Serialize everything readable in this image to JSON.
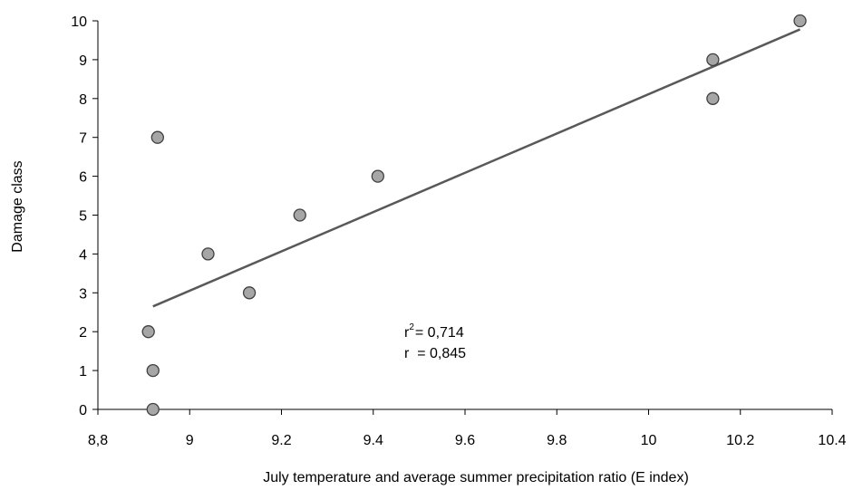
{
  "chart_data": {
    "type": "scatter",
    "xlabel": "July temperature and average summer precipitation ratio (E index)",
    "ylabel": "Damage class",
    "xlim": [
      8.8,
      10.4
    ],
    "ylim": [
      0,
      10
    ],
    "x_ticks": [
      "8,8",
      "9",
      "9.2",
      "9.4",
      "9.6",
      "9.8",
      "10",
      "10.2",
      "10.4"
    ],
    "y_ticks": [
      "0",
      "1",
      "2",
      "3",
      "4",
      "5",
      "6",
      "7",
      "8",
      "9",
      "10"
    ],
    "points": [
      {
        "x": 8.92,
        "y": 0
      },
      {
        "x": 8.92,
        "y": 1
      },
      {
        "x": 8.91,
        "y": 2
      },
      {
        "x": 9.13,
        "y": 3
      },
      {
        "x": 9.04,
        "y": 4
      },
      {
        "x": 9.24,
        "y": 5
      },
      {
        "x": 9.41,
        "y": 6
      },
      {
        "x": 8.93,
        "y": 7
      },
      {
        "x": 10.14,
        "y": 8
      },
      {
        "x": 10.14,
        "y": 9
      },
      {
        "x": 10.33,
        "y": 10
      }
    ],
    "trendline": {
      "x": [
        8.92,
        10.33
      ],
      "y": [
        2.65,
        9.78
      ]
    },
    "annotation": {
      "r2_base": "r",
      "r2_sup": "2",
      "r2_value": "= 0,714",
      "r_line": "r  = 0,845"
    },
    "grid": false,
    "colors": {
      "marker_fill": "#a6a6a6",
      "marker_stroke": "#404040",
      "trendline": "#595959",
      "axis": "#000000"
    }
  }
}
